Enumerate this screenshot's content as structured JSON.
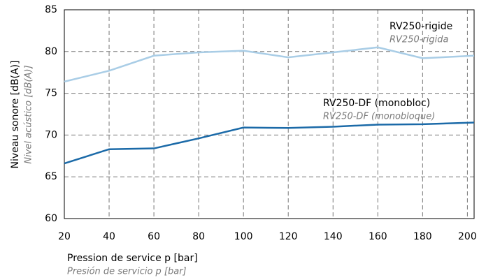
{
  "chart_data": {
    "type": "line",
    "x_label": "Pression de service p [bar]",
    "x_label_alt": "Presión de servicio p [bar]",
    "y_label": "Niveau sonore [dB(A)]",
    "y_label_alt": "Nivel acústico [dB(A)]",
    "x": [
      20,
      40,
      60,
      80,
      100,
      120,
      140,
      160,
      180,
      203
    ],
    "series": [
      {
        "name": "RV250-rigide",
        "name_alt": "RV250-rigida",
        "color": "#a9cde6",
        "values": [
          76.4,
          77.7,
          79.5,
          79.9,
          80.1,
          79.3,
          79.9,
          80.5,
          79.2,
          79.5
        ]
      },
      {
        "name": "RV250-DF (monobloc)",
        "name_alt": "RV250-DF (monobloque)",
        "color": "#1b6aa8",
        "values": [
          66.6,
          68.3,
          68.4,
          69.6,
          70.9,
          70.85,
          71.0,
          71.25,
          71.3,
          71.5
        ]
      }
    ],
    "xlim": [
      20,
      203
    ],
    "xticks": [
      20,
      40,
      60,
      80,
      100,
      120,
      140,
      160,
      180,
      200
    ],
    "ylim": [
      60,
      85
    ],
    "yticks": [
      60,
      65,
      70,
      75,
      80,
      85
    ],
    "grid": true
  }
}
